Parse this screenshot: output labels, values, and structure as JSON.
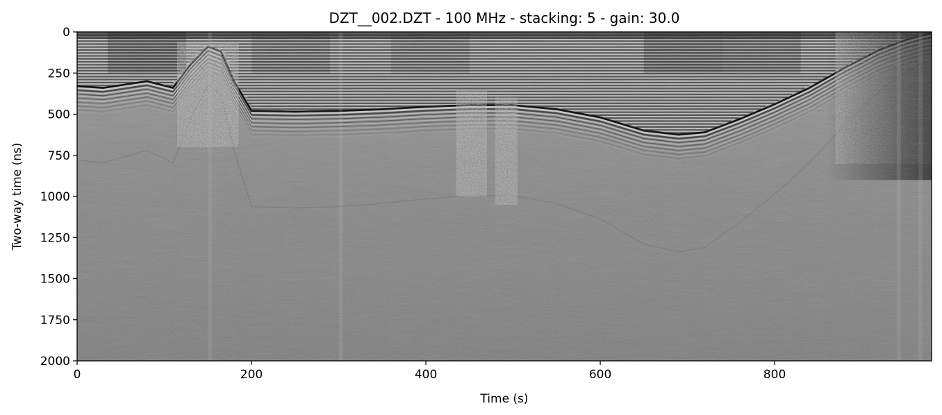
{
  "chart_data": {
    "type": "heatmap",
    "title": "DZT__002.DZT - 100 MHz - stacking: 5 - gain: 30.0",
    "xlabel": "Time (s)",
    "ylabel": "Two-way time (ns)",
    "xlim": [
      0,
      980
    ],
    "ylim": [
      2000,
      0
    ],
    "y_inverted": true,
    "colormap": "gray",
    "grid": false,
    "legend": "none",
    "x_ticks": [
      0,
      200,
      400,
      600,
      800
    ],
    "x_tick_labels": [
      "0",
      "200",
      "400",
      "600",
      "800"
    ],
    "y_ticks": [
      0,
      250,
      500,
      750,
      1000,
      1250,
      1500,
      1750,
      2000
    ],
    "y_tick_labels": [
      "0",
      "250",
      "500",
      "750",
      "1000",
      "1250",
      "1500",
      "1750",
      "2000"
    ],
    "reflectors": [
      {
        "name": "bed",
        "x": [
          0,
          30,
          80,
          110,
          130,
          150,
          165,
          180,
          200,
          250,
          300,
          350,
          400,
          450,
          500,
          550,
          600,
          650,
          690,
          720,
          760,
          800,
          840,
          880,
          920,
          950,
          970,
          980
        ],
        "y": [
          330,
          340,
          300,
          340,
          200,
          90,
          120,
          300,
          480,
          485,
          480,
          470,
          455,
          445,
          445,
          470,
          520,
          600,
          625,
          610,
          530,
          440,
          340,
          220,
          110,
          50,
          20,
          10
        ]
      }
    ],
    "noise_zones": [
      {
        "x": [
          115,
          185
        ],
        "y": [
          60,
          700
        ]
      },
      {
        "x": [
          435,
          470
        ],
        "y": [
          360,
          1000
        ]
      },
      {
        "x": [
          480,
          505
        ],
        "y": [
          400,
          1050
        ]
      },
      {
        "x": [
          870,
          980
        ],
        "y": [
          0,
          800
        ]
      }
    ]
  }
}
